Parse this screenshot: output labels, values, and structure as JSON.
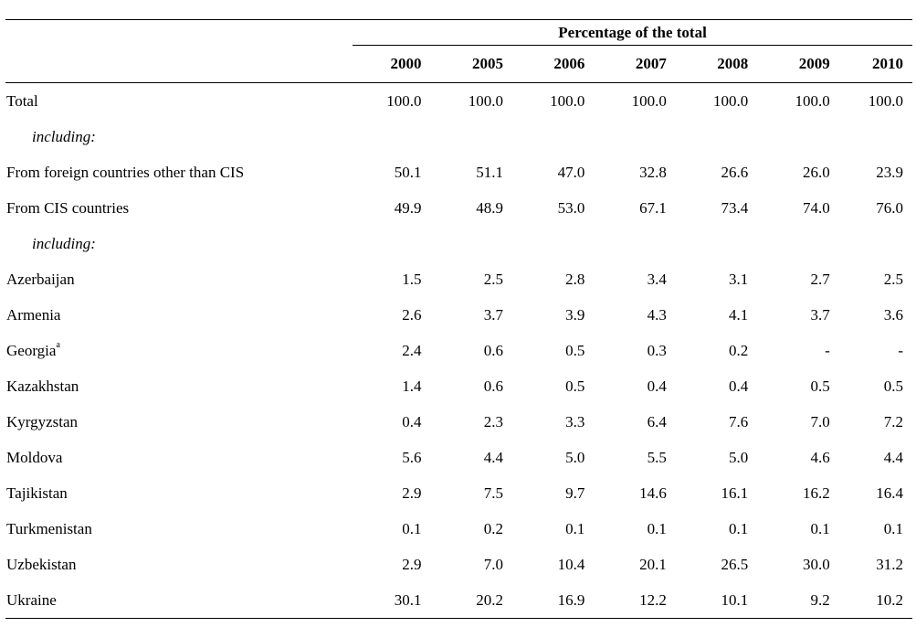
{
  "table": {
    "column_group": "Percentage of the total",
    "years": [
      "2000",
      "2005",
      "2006",
      "2007",
      "2008",
      "2009",
      "2010"
    ],
    "rows": [
      {
        "label": "Total",
        "values": [
          "100.0",
          "100.0",
          "100.0",
          "100.0",
          "100.0",
          "100.0",
          "100.0"
        ]
      },
      {
        "label": "including:",
        "indent": true,
        "values": []
      },
      {
        "label": "From foreign countries other than CIS",
        "values": [
          "50.1",
          "51.1",
          "47.0",
          "32.8",
          "26.6",
          "26.0",
          "23.9"
        ]
      },
      {
        "label": "From CIS countries",
        "values": [
          "49.9",
          "48.9",
          "53.0",
          "67.1",
          "73.4",
          "74.0",
          "76.0"
        ]
      },
      {
        "label": "including:",
        "indent": true,
        "values": []
      },
      {
        "label": "Azerbaijan",
        "values": [
          "1.5",
          "2.5",
          "2.8",
          "3.4",
          "3.1",
          "2.7",
          "2.5"
        ]
      },
      {
        "label": "Armenia",
        "values": [
          "2.6",
          "3.7",
          "3.9",
          "4.3",
          "4.1",
          "3.7",
          "3.6"
        ]
      },
      {
        "label": "Georgia",
        "footnote": "a",
        "values": [
          "2.4",
          "0.6",
          "0.5",
          "0.3",
          "0.2",
          "-",
          "-"
        ]
      },
      {
        "label": "Kazakhstan",
        "values": [
          "1.4",
          "0.6",
          "0.5",
          "0.4",
          "0.4",
          "0.5",
          "0.5"
        ]
      },
      {
        "label": "Kyrgyzstan",
        "values": [
          "0.4",
          "2.3",
          "3.3",
          "6.4",
          "7.6",
          "7.0",
          "7.2"
        ]
      },
      {
        "label": "Moldova",
        "values": [
          "5.6",
          "4.4",
          "5.0",
          "5.5",
          "5.0",
          "4.6",
          "4.4"
        ]
      },
      {
        "label": "Tajikistan",
        "values": [
          "2.9",
          "7.5",
          "9.7",
          "14.6",
          "16.1",
          "16.2",
          "16.4"
        ]
      },
      {
        "label": "Turkmenistan",
        "values": [
          "0.1",
          "0.2",
          "0.1",
          "0.1",
          "0.1",
          "0.1",
          "0.1"
        ]
      },
      {
        "label": "Uzbekistan",
        "values": [
          "2.9",
          "7.0",
          "10.4",
          "20.1",
          "26.5",
          "30.0",
          "31.2"
        ]
      },
      {
        "label": "Ukraine",
        "values": [
          "30.1",
          "20.2",
          "16.9",
          "12.2",
          "10.1",
          "9.2",
          "10.2"
        ]
      }
    ]
  }
}
